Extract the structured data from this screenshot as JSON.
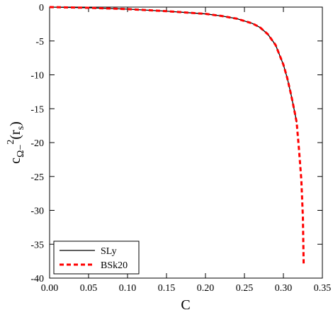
{
  "chart_data": {
    "type": "line",
    "xlabel": "C",
    "ylabel_parts": [
      "c",
      "Ω−",
      "2",
      "(r",
      "s",
      ")"
    ],
    "xlim": [
      0,
      0.35
    ],
    "ylim": [
      -40,
      0
    ],
    "xticks": [
      {
        "value": 0,
        "label": "0.00"
      },
      {
        "value": 0.05,
        "label": "0.05"
      },
      {
        "value": 0.1,
        "label": "0.10"
      },
      {
        "value": 0.15,
        "label": "0.15"
      },
      {
        "value": 0.2,
        "label": "0.20"
      },
      {
        "value": 0.25,
        "label": "0.25"
      },
      {
        "value": 0.3,
        "label": "0.30"
      },
      {
        "value": 0.35,
        "label": "0.35"
      }
    ],
    "yticks": [
      -40,
      -35,
      -30,
      -25,
      -20,
      -15,
      -10,
      -5,
      0
    ],
    "legend": "lower left",
    "series": [
      {
        "name": "SLy",
        "color": "#000000",
        "dash": false,
        "x": [
          0,
          0.05,
          0.1,
          0.15,
          0.2,
          0.22,
          0.24,
          0.26,
          0.27,
          0.28,
          0.29,
          0.3,
          0.305,
          0.31,
          0.315,
          0.317
        ],
        "values": [
          0,
          -0.1,
          -0.3,
          -0.6,
          -1.0,
          -1.3,
          -1.7,
          -2.4,
          -3.0,
          -4.0,
          -5.6,
          -8.5,
          -10.5,
          -13.0,
          -15.8,
          -17.0
        ]
      },
      {
        "name": "BSk20",
        "color": "#ff0000",
        "dash": true,
        "x": [
          0,
          0.05,
          0.1,
          0.15,
          0.2,
          0.22,
          0.24,
          0.26,
          0.27,
          0.28,
          0.29,
          0.3,
          0.305,
          0.31,
          0.315,
          0.317,
          0.32,
          0.323,
          0.325,
          0.326
        ],
        "values": [
          0,
          -0.1,
          -0.3,
          -0.6,
          -1.0,
          -1.3,
          -1.7,
          -2.4,
          -3.0,
          -4.0,
          -5.6,
          -8.5,
          -10.5,
          -13.0,
          -15.8,
          -17.0,
          -21.0,
          -25.5,
          -31.0,
          -38.0
        ]
      }
    ]
  }
}
